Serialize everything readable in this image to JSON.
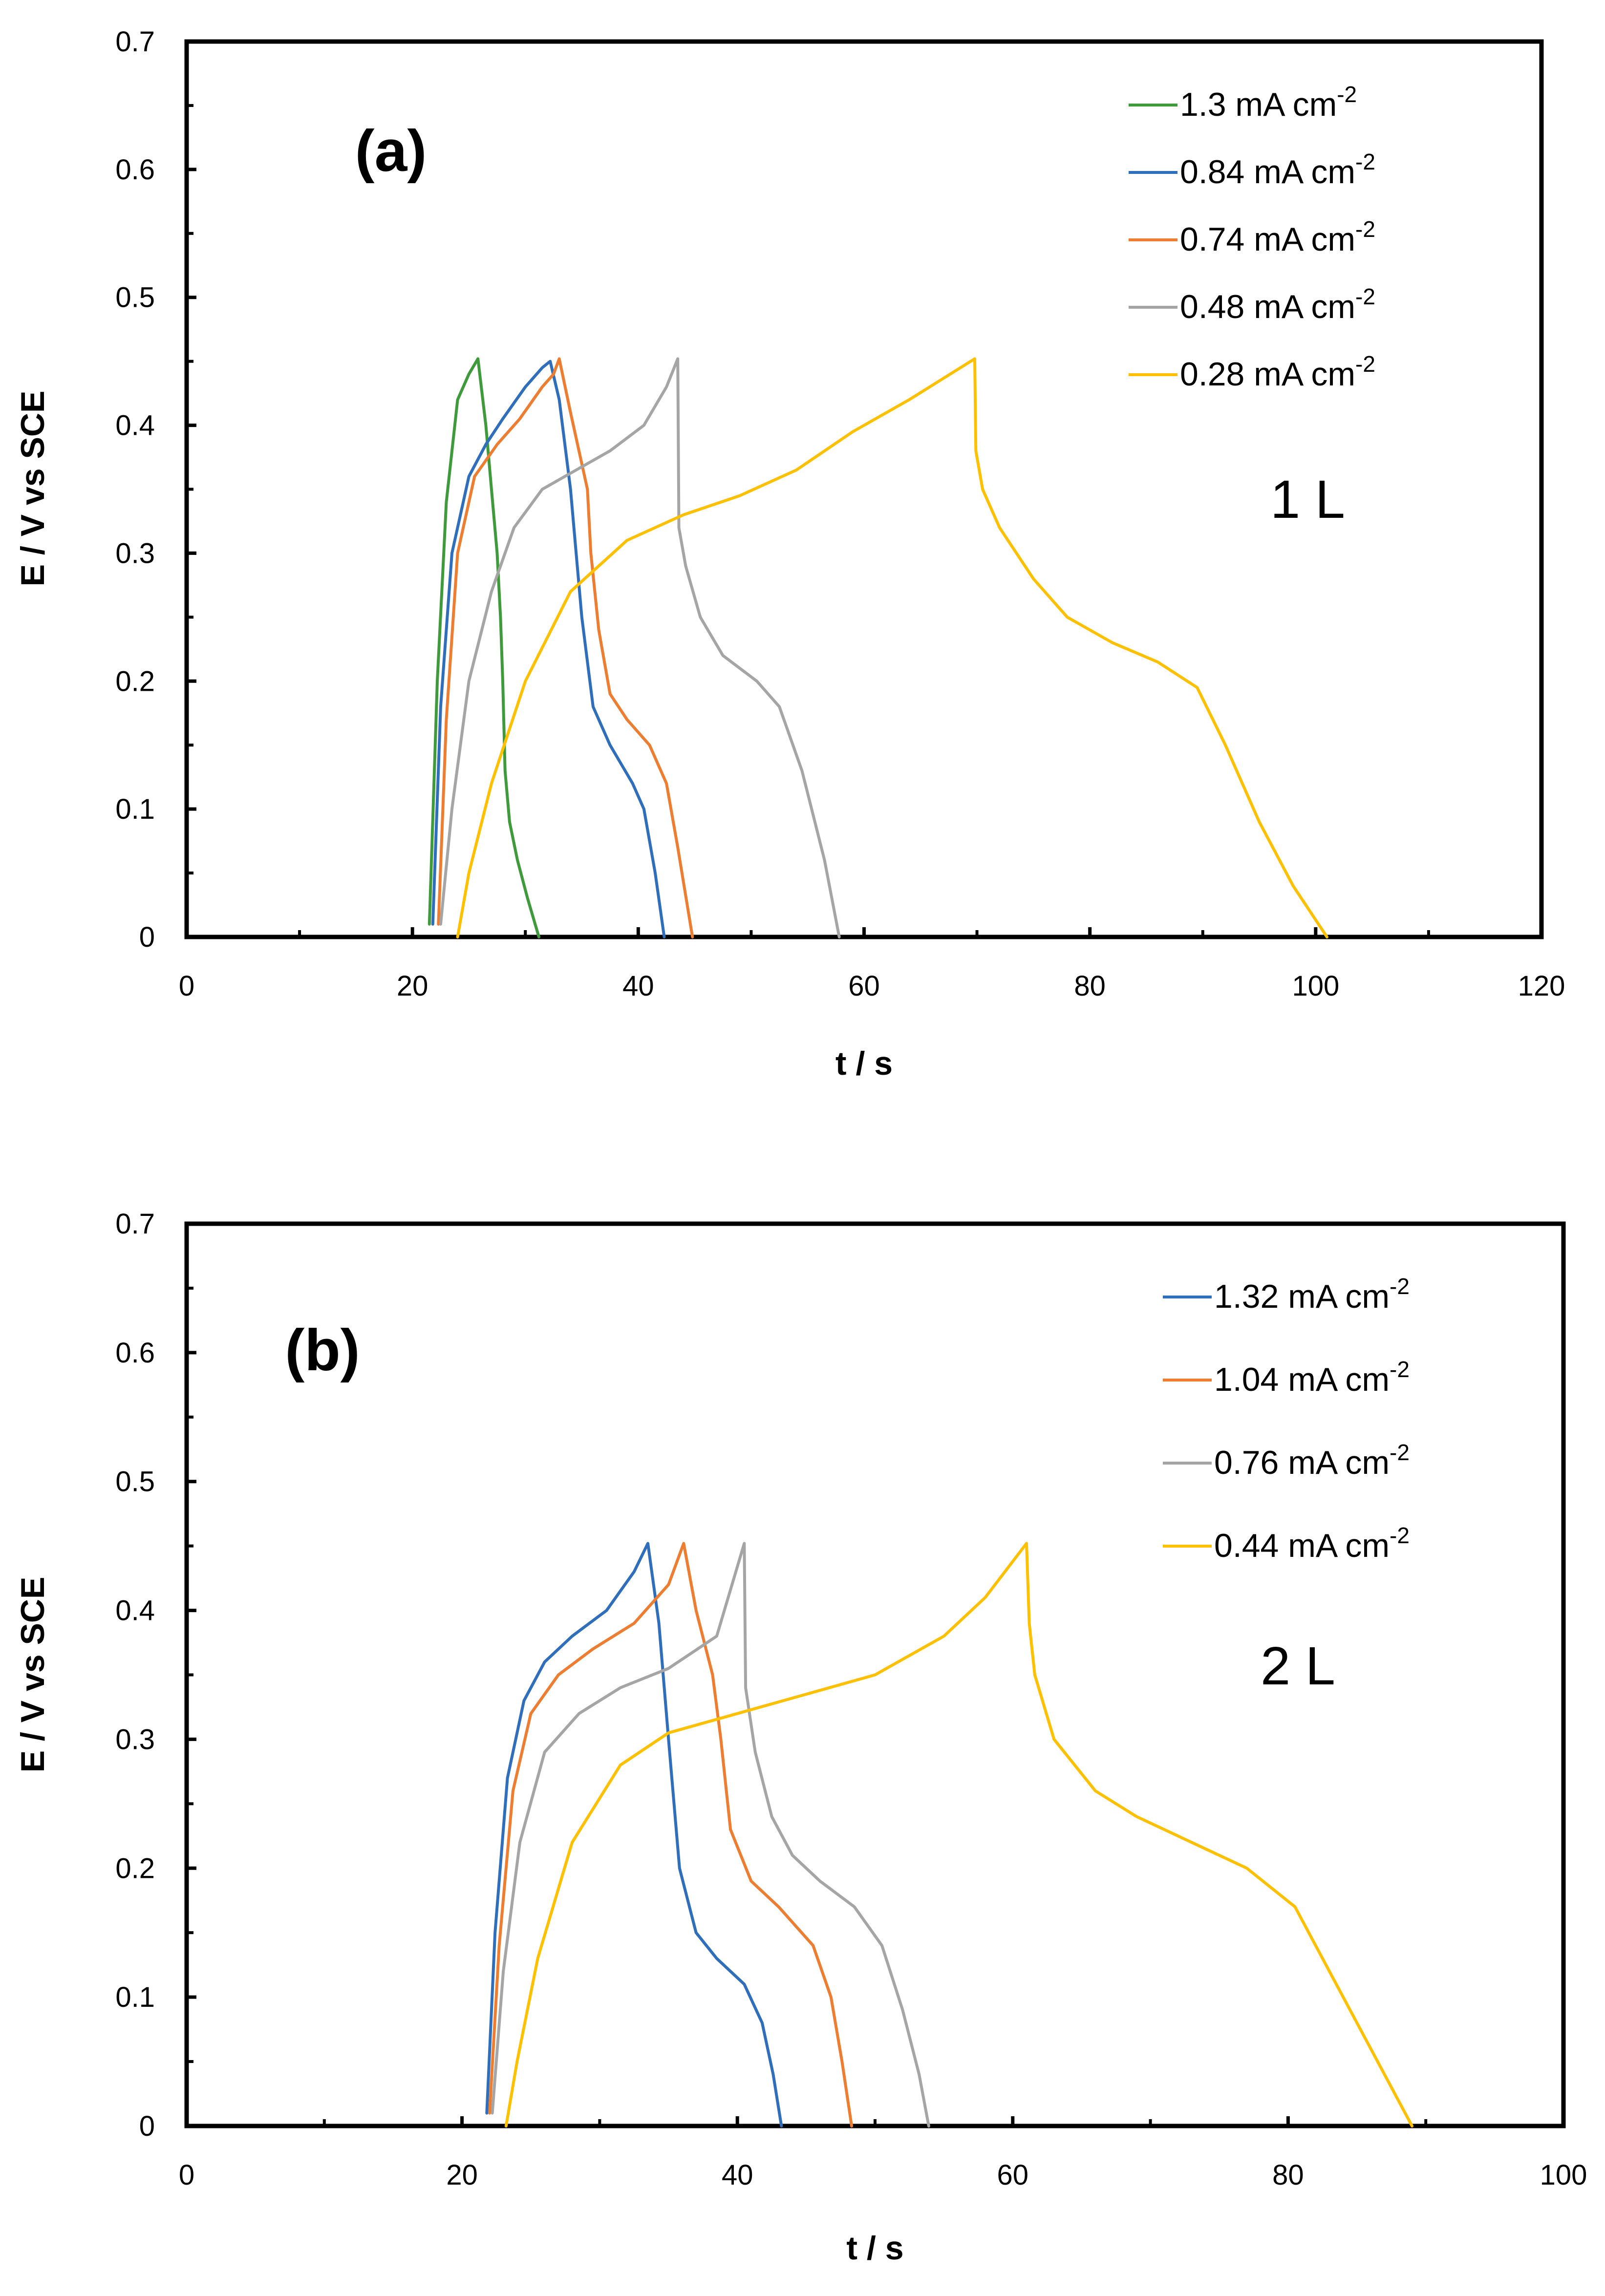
{
  "chart_data": [
    {
      "type": "line",
      "panel_label": "(a)",
      "condition_label": "1 L",
      "xlabel": "t / s",
      "ylabel": "E / V vs SCE",
      "xlim": [
        0,
        120
      ],
      "ylim": [
        0,
        0.7
      ],
      "x_ticks": [
        "0",
        "20",
        "40",
        "60",
        "80",
        "100",
        "120"
      ],
      "y_ticks": [
        "0",
        "0.1",
        "0.2",
        "0.3",
        "0.4",
        "0.5",
        "0.6",
        "0.7"
      ],
      "legend_position": "top-right",
      "series": [
        {
          "name": "1.3 mA cm",
          "exp": "-2",
          "color": "#3e9a3a",
          "x": [
            21.5,
            22.2,
            23.0,
            24.0,
            25.0,
            25.8,
            26.5,
            27.0,
            27.5,
            27.8,
            28.0,
            28.2,
            28.6,
            29.3,
            30.2,
            31.2
          ],
          "y": [
            0.01,
            0.2,
            0.34,
            0.42,
            0.44,
            0.452,
            0.4,
            0.35,
            0.3,
            0.25,
            0.2,
            0.13,
            0.09,
            0.06,
            0.03,
            0.0
          ]
        },
        {
          "name": "0.84 mA cm",
          "exp": "-2",
          "color": "#2f6eba",
          "x": [
            21.8,
            22.5,
            23.5,
            25.0,
            26.5,
            28.0,
            30.0,
            31.5,
            32.2,
            33.0,
            34.0,
            34.5,
            35.0,
            36.0,
            37.5,
            39.5,
            40.5,
            41.5,
            42.3
          ],
          "y": [
            0.01,
            0.18,
            0.3,
            0.36,
            0.385,
            0.405,
            0.43,
            0.445,
            0.45,
            0.42,
            0.35,
            0.3,
            0.25,
            0.18,
            0.15,
            0.12,
            0.1,
            0.05,
            0.0
          ]
        },
        {
          "name": "0.74 mA cm",
          "exp": "-2",
          "color": "#ed7d31",
          "x": [
            22.3,
            23.0,
            24.0,
            25.5,
            27.5,
            29.5,
            31.5,
            32.5,
            33.0,
            34.0,
            35.5,
            35.8,
            36.5,
            37.5,
            39.0,
            41.0,
            42.5,
            43.5,
            44.8
          ],
          "y": [
            0.01,
            0.17,
            0.3,
            0.36,
            0.385,
            0.405,
            0.43,
            0.44,
            0.452,
            0.41,
            0.35,
            0.3,
            0.24,
            0.19,
            0.17,
            0.15,
            0.12,
            0.07,
            0.0
          ]
        },
        {
          "name": "0.48 mA cm",
          "exp": "-2",
          "color": "#a5a5a5",
          "x": [
            22.5,
            23.5,
            25.0,
            27.0,
            29.0,
            31.5,
            34.5,
            37.5,
            40.5,
            42.5,
            43.5,
            43.6,
            44.2,
            45.5,
            47.5,
            50.5,
            52.5,
            54.5,
            56.5,
            57.8
          ],
          "y": [
            0.01,
            0.1,
            0.2,
            0.27,
            0.32,
            0.35,
            0.365,
            0.38,
            0.4,
            0.43,
            0.452,
            0.32,
            0.29,
            0.25,
            0.22,
            0.2,
            0.18,
            0.13,
            0.06,
            0.0
          ]
        },
        {
          "name": "0.28 mA cm",
          "exp": "-2",
          "color": "#ffc000",
          "x": [
            24.0,
            25.0,
            27.0,
            30.0,
            34.0,
            39.0,
            44.0,
            49.0,
            54.0,
            59.0,
            64.0,
            69.8,
            69.9,
            70.5,
            72.0,
            75.0,
            78.0,
            82.0,
            86.0,
            89.5,
            92.0,
            95.0,
            98.0,
            101.0
          ],
          "y": [
            0.0,
            0.05,
            0.12,
            0.2,
            0.27,
            0.31,
            0.33,
            0.345,
            0.365,
            0.395,
            0.42,
            0.452,
            0.38,
            0.35,
            0.32,
            0.28,
            0.25,
            0.23,
            0.215,
            0.195,
            0.15,
            0.09,
            0.04,
            0.0
          ]
        }
      ]
    },
    {
      "type": "line",
      "panel_label": "(b)",
      "condition_label": "2 L",
      "xlabel": "t / s",
      "ylabel": "E / V vs SCE",
      "xlim": [
        0,
        100
      ],
      "ylim": [
        0,
        0.7
      ],
      "x_ticks": [
        "0",
        "20",
        "40",
        "60",
        "80",
        "100"
      ],
      "y_ticks": [
        "0",
        "0.1",
        "0.2",
        "0.3",
        "0.4",
        "0.5",
        "0.6",
        "0.7"
      ],
      "legend_position": "top-right",
      "series": [
        {
          "name": "1.32 mA cm",
          "exp": "-2",
          "color": "#2f6eba",
          "x": [
            21.8,
            22.4,
            23.3,
            24.5,
            26.0,
            28.0,
            30.5,
            32.5,
            33.5,
            34.3,
            35.0,
            35.8,
            37.0,
            38.5,
            40.5,
            41.8,
            42.6,
            43.2
          ],
          "y": [
            0.01,
            0.15,
            0.27,
            0.33,
            0.36,
            0.38,
            0.4,
            0.43,
            0.452,
            0.39,
            0.3,
            0.2,
            0.15,
            0.13,
            0.11,
            0.08,
            0.04,
            0.0
          ]
        },
        {
          "name": "1.04 mA cm",
          "exp": "-2",
          "color": "#ed7d31",
          "x": [
            22.0,
            22.7,
            23.7,
            25.0,
            27.0,
            29.5,
            32.5,
            35.0,
            36.1,
            37.0,
            38.2,
            38.8,
            39.5,
            41.0,
            43.0,
            45.5,
            46.8,
            47.6,
            48.3
          ],
          "y": [
            0.01,
            0.14,
            0.26,
            0.32,
            0.35,
            0.37,
            0.39,
            0.42,
            0.452,
            0.4,
            0.35,
            0.3,
            0.23,
            0.19,
            0.17,
            0.14,
            0.1,
            0.05,
            0.0
          ]
        },
        {
          "name": "0.76 mA cm",
          "exp": "-2",
          "color": "#a5a5a5",
          "x": [
            22.2,
            23.0,
            24.2,
            26.0,
            28.5,
            31.5,
            35.0,
            38.5,
            40.5,
            40.6,
            41.3,
            42.5,
            44.0,
            46.0,
            48.5,
            50.5,
            52.0,
            53.2,
            53.9
          ],
          "y": [
            0.01,
            0.12,
            0.22,
            0.29,
            0.32,
            0.34,
            0.355,
            0.38,
            0.452,
            0.34,
            0.29,
            0.24,
            0.21,
            0.19,
            0.17,
            0.14,
            0.09,
            0.04,
            0.0
          ]
        },
        {
          "name": "0.44 mA cm",
          "exp": "-2",
          "color": "#ffc000",
          "x": [
            23.2,
            24.0,
            25.5,
            28.0,
            31.5,
            35.0,
            40.0,
            45.0,
            50.0,
            55.0,
            58.0,
            61.0,
            61.2,
            61.6,
            63.0,
            66.0,
            69.0,
            73.0,
            77.0,
            80.5,
            83.0,
            86.0,
            89.0
          ],
          "y": [
            0.0,
            0.05,
            0.13,
            0.22,
            0.28,
            0.305,
            0.32,
            0.335,
            0.35,
            0.38,
            0.41,
            0.452,
            0.39,
            0.35,
            0.3,
            0.26,
            0.24,
            0.22,
            0.2,
            0.17,
            0.12,
            0.06,
            0.0
          ]
        }
      ]
    }
  ]
}
